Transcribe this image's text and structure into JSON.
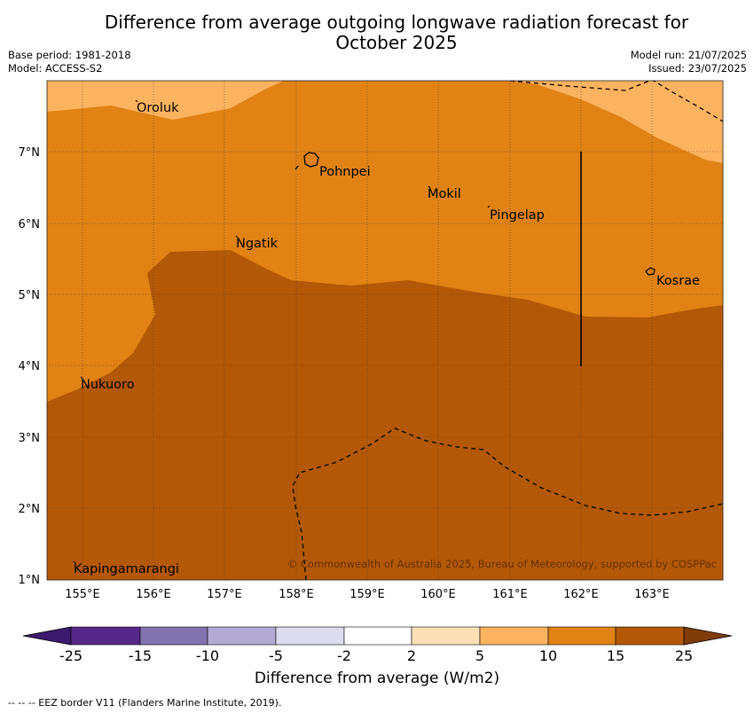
{
  "title": "Difference from average outgoing longwave radiation forecast for October 2025",
  "title_line1": "Difference from average outgoing longwave radiation forecast for",
  "title_line2": "October 2025",
  "meta_left": {
    "base_period": "Base period: 1981-2018",
    "model": "Model: ACCESS-S2"
  },
  "meta_right": {
    "model_run": "Model run: 21/07/2025",
    "issued": "Issued: 23/07/2025"
  },
  "map": {
    "lon_labels": [
      "155°E",
      "156°E",
      "157°E",
      "158°E",
      "159°E",
      "160°E",
      "161°E",
      "162°E",
      "163°E"
    ],
    "lat_labels": [
      "7°N",
      "6°N",
      "5°N",
      "4°N",
      "3°N",
      "2°N",
      "1°N"
    ],
    "places": [
      {
        "name": "Oroluk"
      },
      {
        "name": "Pohnpei"
      },
      {
        "name": "Mokil"
      },
      {
        "name": "Pingelap"
      },
      {
        "name": "Ngatik"
      },
      {
        "name": "Kosrae"
      },
      {
        "name": "Nukuoro"
      },
      {
        "name": "Kapingamarangi"
      }
    ],
    "copyright": "© Commonwealth of Australia 2025, Bureau of Meteorology, supported by COSPPac"
  },
  "colorbar": {
    "ticks": [
      "-25",
      "-15",
      "-10",
      "-5",
      "-2",
      "2",
      "5",
      "10",
      "15",
      "25"
    ],
    "colors": [
      "#3b1a6e",
      "#55288a",
      "#8073ae",
      "#b2aad3",
      "#dcdcee",
      "#ffffff",
      "#fde0b6",
      "#fcb35f",
      "#e08214",
      "#b35806",
      "#7f3b08"
    ],
    "label": "Difference from average (W/m2)"
  },
  "footnote": "--  --  -- EEZ border V11 (Flanders Marine Institute, 2019)."
}
